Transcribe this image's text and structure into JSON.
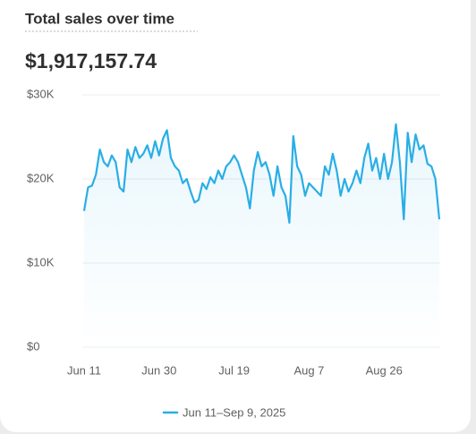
{
  "chart_data": {
    "type": "line",
    "title": "Total sales over time",
    "total": "$1,917,157.74",
    "categories": [
      "Jun 11",
      null,
      null,
      null,
      null,
      null,
      null,
      null,
      null,
      null,
      null,
      null,
      null,
      null,
      null,
      null,
      null,
      null,
      null,
      "Jun 30",
      null,
      null,
      null,
      null,
      null,
      null,
      null,
      null,
      null,
      null,
      null,
      null,
      null,
      null,
      null,
      null,
      null,
      null,
      "Jul 19",
      null,
      null,
      null,
      null,
      null,
      null,
      null,
      null,
      null,
      null,
      null,
      null,
      null,
      null,
      null,
      null,
      null,
      null,
      "Aug 7",
      null,
      null,
      null,
      null,
      null,
      null,
      null,
      null,
      null,
      null,
      null,
      null,
      null,
      null,
      null,
      null,
      null,
      null,
      "Aug 26",
      null,
      null,
      null,
      null,
      null,
      null,
      null,
      null,
      null,
      null,
      null,
      null,
      null,
      null
    ],
    "series": [
      {
        "name": "Jun 11–Sep 9, 2025",
        "color": "#29aee6",
        "values": [
          16200,
          19000,
          19200,
          20500,
          23500,
          22000,
          21500,
          22800,
          22000,
          19000,
          18500,
          23500,
          22000,
          23800,
          22500,
          23000,
          24000,
          22500,
          24500,
          22800,
          24800,
          25800,
          22500,
          21500,
          21000,
          19500,
          20000,
          18500,
          17200,
          17500,
          19500,
          18800,
          20200,
          19500,
          21000,
          20000,
          21500,
          22000,
          22800,
          22000,
          20500,
          19000,
          16500,
          21000,
          23200,
          21500,
          22000,
          20500,
          18000,
          21500,
          19000,
          18000,
          14800,
          25100,
          21500,
          20500,
          18000,
          19500,
          19000,
          18500,
          18000,
          21500,
          20500,
          23000,
          21000,
          18000,
          20000,
          18500,
          19500,
          21000,
          19500,
          22500,
          24200,
          21000,
          22500,
          20000,
          23000,
          20000,
          22000,
          26500,
          22000,
          15200,
          25500,
          22000,
          25300,
          23500,
          24000,
          21800,
          21500,
          20000,
          15200
        ]
      }
    ],
    "ylim": [
      0,
      30000
    ],
    "yticks": [
      {
        "value": 0,
        "label": "$0"
      },
      {
        "value": 10000,
        "label": "$10K"
      },
      {
        "value": 20000,
        "label": "$20K"
      },
      {
        "value": 30000,
        "label": "$30K"
      }
    ],
    "grid": true
  }
}
